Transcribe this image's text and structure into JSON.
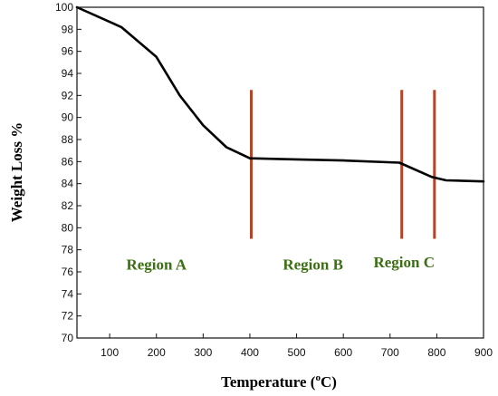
{
  "chart_data": {
    "type": "line",
    "xlabel": "Temperature (°C)",
    "xlabel_parts": {
      "main": "Temperature (",
      "deg": "o",
      "rest": "C)"
    },
    "ylabel": "Weight Loss %",
    "xlim": [
      30,
      900
    ],
    "ylim": [
      70,
      100
    ],
    "xticks": [
      100,
      200,
      300,
      400,
      500,
      600,
      700,
      800,
      900
    ],
    "yticks": [
      70,
      72,
      74,
      76,
      78,
      80,
      82,
      84,
      86,
      88,
      90,
      92,
      94,
      96,
      98,
      100
    ],
    "grid": false,
    "series": [
      {
        "x": [
          30,
          125,
          200,
          250,
          300,
          350,
          400,
          500,
          600,
          720,
          790,
          820,
          900
        ],
        "y": [
          100,
          98.2,
          95.5,
          92.0,
          89.3,
          87.3,
          86.3,
          86.2,
          86.1,
          85.9,
          84.6,
          84.3,
          84.2
        ],
        "color": "#000000"
      }
    ],
    "markers": [
      {
        "x": 403,
        "y_top": 92.5,
        "y_bottom": 79.0,
        "color": "#b5452a"
      },
      {
        "x": 725,
        "y_top": 92.5,
        "y_bottom": 79.0,
        "color": "#b5452a"
      },
      {
        "x": 795,
        "y_top": 92.5,
        "y_bottom": 79.0,
        "color": "#b5452a"
      }
    ],
    "annotations": [
      {
        "text": "Region A",
        "x": 200,
        "y": 76.2,
        "color": "#3b6f12"
      },
      {
        "text": "Region B",
        "x": 535,
        "y": 76.2,
        "color": "#3b6f12"
      },
      {
        "text": "Region C",
        "x": 730,
        "y": 76.4,
        "color": "#3b6f12"
      }
    ]
  }
}
